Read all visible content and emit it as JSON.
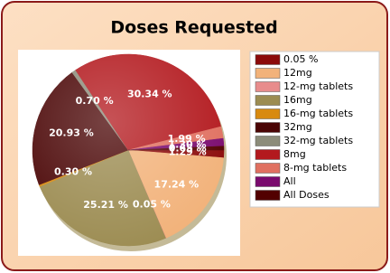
{
  "chart_data": {
    "type": "pie",
    "title": "Doses Requested",
    "categories": [
      "0.05 %",
      "12mg",
      "12-mg tablets",
      "16mg",
      "16-mg tablets",
      "32mg",
      "32-mg tablets",
      "8mg",
      "8-mg tablets",
      "All",
      "All Doses"
    ],
    "values": [
      1.29,
      17.24,
      0.05,
      25.21,
      0.3,
      20.93,
      0.7,
      30.34,
      1.99,
      1.3,
      0.65
    ],
    "value_labels": [
      "1.29 %",
      "17.24 %",
      "0.05 %",
      "25.21 %",
      "0.30 %",
      "20.93 %",
      "0.70 %",
      "30.34 %",
      "1.99 %",
      "1.30 %",
      "0.65 %"
    ],
    "colors": [
      "#8b0a0a",
      "#f2b27a",
      "#e88c8c",
      "#9c8c52",
      "#d88a10",
      "#4a0505",
      "#8c8c7a",
      "#b3191e",
      "#e07060",
      "#7a0a6e",
      "#520000"
    ]
  }
}
